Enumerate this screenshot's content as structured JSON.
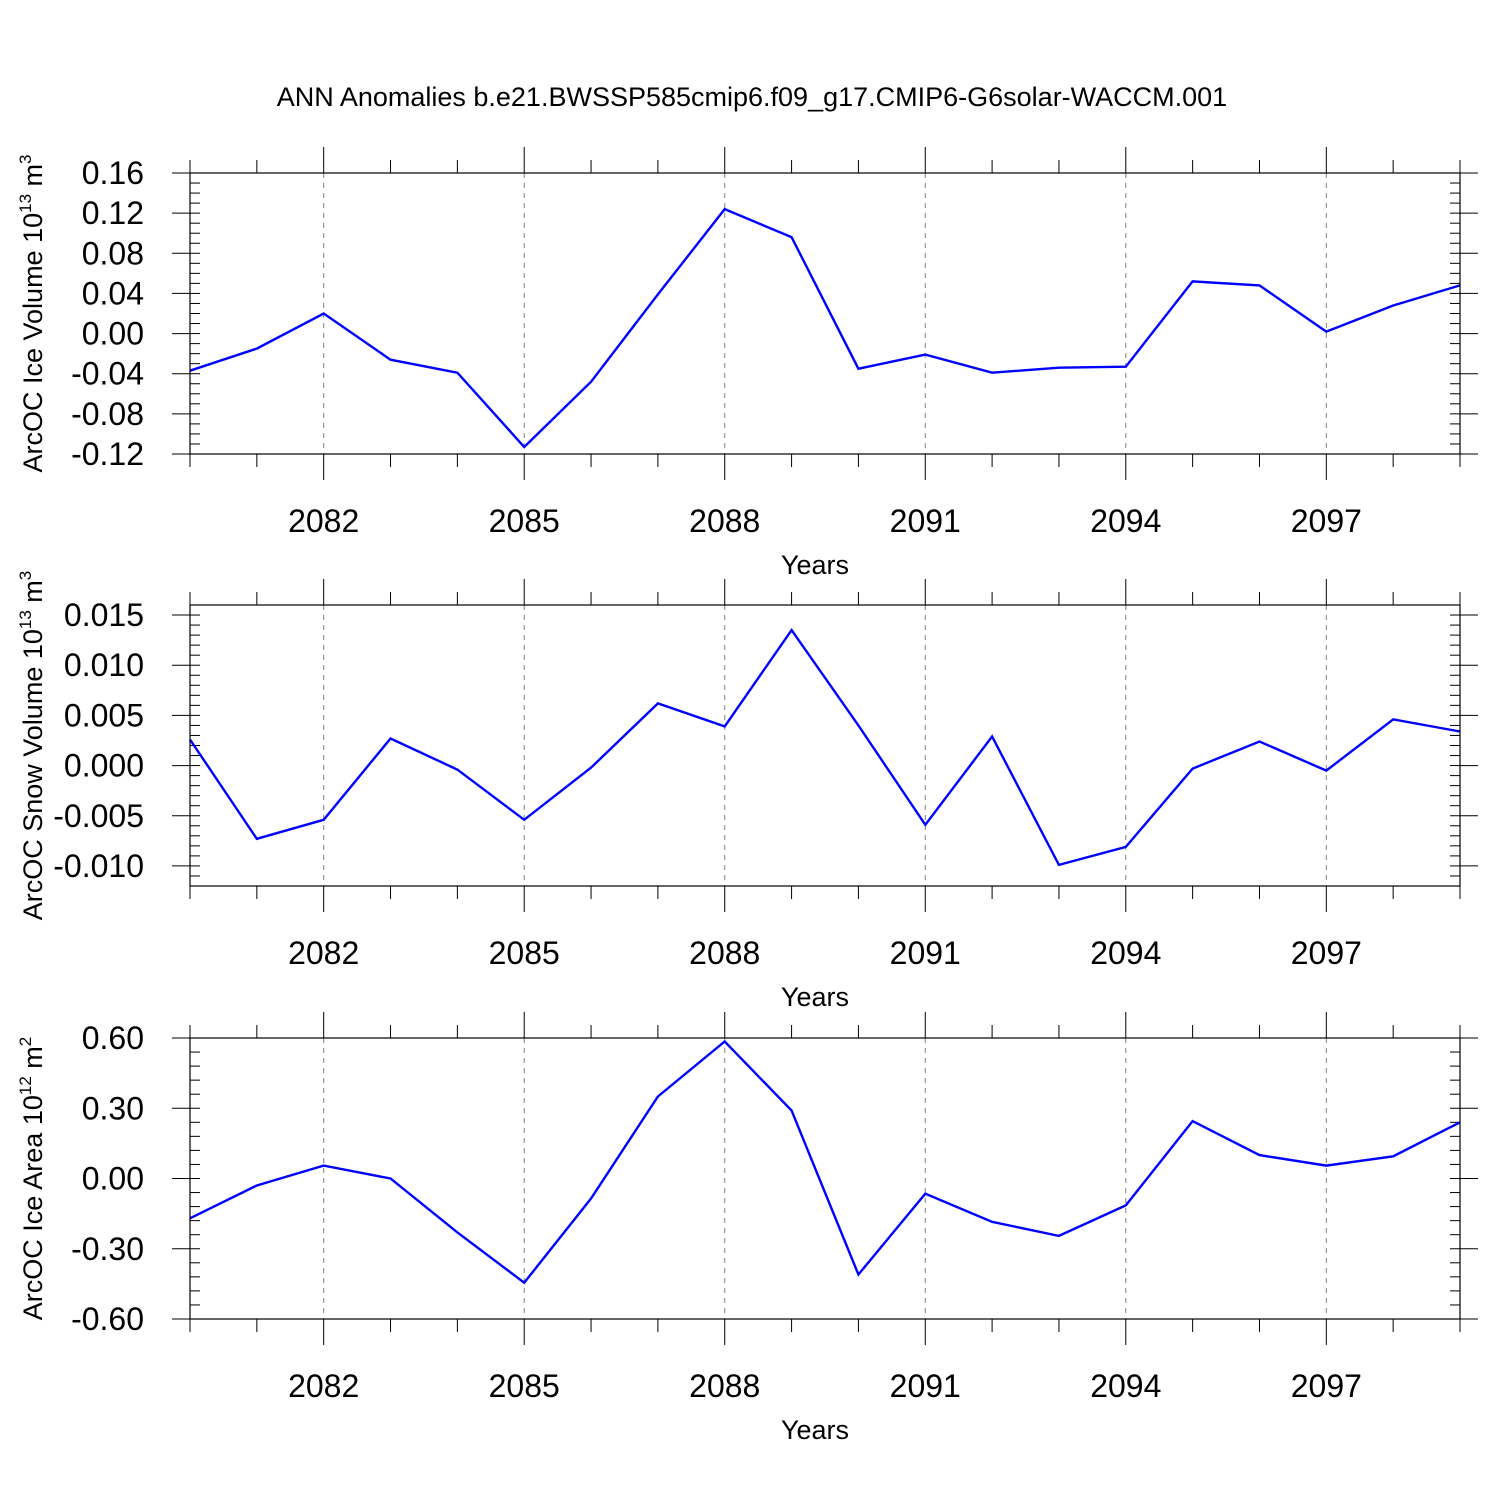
{
  "title": "ANN Anomalies b.e21.BWSSP585cmip6.f09_g17.CMIP6-G6solar-WACCM.001",
  "line_color": "#0000ff",
  "chart_data": [
    {
      "type": "line",
      "title": "",
      "xlabel": "Years",
      "ylabel": {
        "text": "ArcOC Ice Volume 10",
        "sup": "13",
        "unit": " m",
        "unit_sup": "3"
      },
      "xlim": [
        2080,
        2099
      ],
      "ylim": [
        -0.12,
        0.16
      ],
      "x_ticks": [
        2082,
        2085,
        2088,
        2091,
        2094,
        2097
      ],
      "x_tick_labels": [
        "2082",
        "2085",
        "2088",
        "2091",
        "2094",
        "2097"
      ],
      "y_ticks": [
        -0.12,
        -0.08,
        -0.04,
        0.0,
        0.04,
        0.08,
        0.12,
        0.16
      ],
      "y_tick_labels": [
        "-0.12",
        "-0.08",
        "-0.04",
        "0.00",
        "0.04",
        "0.08",
        "0.12",
        "0.16"
      ],
      "y_minor_step": 0.01,
      "grid": "x-major-dashed",
      "series": [
        {
          "x": [
            2080,
            2081,
            2082,
            2083,
            2084,
            2085,
            2086,
            2087,
            2088,
            2089,
            2090,
            2091,
            2092,
            2093,
            2094,
            2095,
            2096,
            2097,
            2098,
            2099
          ],
          "values": [
            -0.037,
            -0.015,
            0.02,
            -0.026,
            -0.039,
            -0.113,
            -0.048,
            0.039,
            0.124,
            0.096,
            -0.035,
            -0.021,
            -0.039,
            -0.034,
            -0.033,
            0.052,
            0.048,
            0.002,
            0.028,
            0.048
          ]
        }
      ]
    },
    {
      "type": "line",
      "title": "",
      "xlabel": "Years",
      "ylabel": {
        "text": "ArcOC Snow Volume 10",
        "sup": "13",
        "unit": " m",
        "unit_sup": "3"
      },
      "xlim": [
        2080,
        2099
      ],
      "ylim": [
        -0.012,
        0.016
      ],
      "x_ticks": [
        2082,
        2085,
        2088,
        2091,
        2094,
        2097
      ],
      "x_tick_labels": [
        "2082",
        "2085",
        "2088",
        "2091",
        "2094",
        "2097"
      ],
      "y_ticks": [
        -0.01,
        -0.005,
        0.0,
        0.005,
        0.01,
        0.015
      ],
      "y_tick_labels": [
        "-0.010",
        "-0.005",
        "0.000",
        "0.005",
        "0.010",
        "0.015"
      ],
      "y_minor_step": 0.001,
      "grid": "x-major-dashed",
      "series": [
        {
          "x": [
            2080,
            2081,
            2082,
            2083,
            2084,
            2085,
            2086,
            2087,
            2088,
            2089,
            2090,
            2091,
            2092,
            2093,
            2094,
            2095,
            2096,
            2097,
            2098,
            2099
          ],
          "values": [
            0.0026,
            -0.0073,
            -0.0054,
            0.0027,
            -0.0004,
            -0.0054,
            -0.0002,
            0.0062,
            0.0039,
            0.0135,
            0.004,
            -0.0059,
            0.0029,
            -0.0099,
            -0.0081,
            -0.0003,
            0.0024,
            -0.0005,
            0.0046,
            0.0034
          ]
        }
      ]
    },
    {
      "type": "line",
      "title": "",
      "xlabel": "Years",
      "ylabel": {
        "text": "ArcOC Ice Area 10",
        "sup": "12",
        "unit": " m",
        "unit_sup": "2"
      },
      "xlim": [
        2080,
        2099
      ],
      "ylim": [
        -0.6,
        0.6
      ],
      "x_ticks": [
        2082,
        2085,
        2088,
        2091,
        2094,
        2097
      ],
      "x_tick_labels": [
        "2082",
        "2085",
        "2088",
        "2091",
        "2094",
        "2097"
      ],
      "y_ticks": [
        -0.6,
        -0.3,
        0.0,
        0.3,
        0.6
      ],
      "y_tick_labels": [
        "-0.60",
        "-0.30",
        "0.00",
        "0.30",
        "0.60"
      ],
      "y_minor_step": 0.06,
      "grid": "x-major-dashed",
      "series": [
        {
          "x": [
            2080,
            2081,
            2082,
            2083,
            2084,
            2085,
            2086,
            2087,
            2088,
            2089,
            2090,
            2091,
            2092,
            2093,
            2094,
            2095,
            2096,
            2097,
            2098,
            2099
          ],
          "values": [
            -0.17,
            -0.03,
            0.055,
            0.0,
            -0.23,
            -0.445,
            -0.085,
            0.35,
            0.585,
            0.29,
            -0.41,
            -0.065,
            -0.185,
            -0.245,
            -0.115,
            0.245,
            0.1,
            0.055,
            0.095,
            0.24
          ]
        }
      ]
    }
  ]
}
